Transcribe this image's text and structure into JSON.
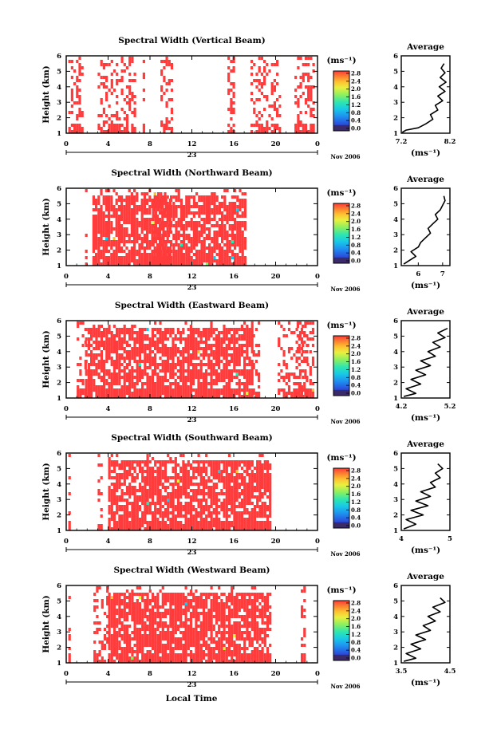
{
  "figure": {
    "xlabel": "Local Time",
    "date_label": "Nov 2006",
    "day_label": "23",
    "colorbar_unit": "(ms⁻¹)",
    "average_title": "Average",
    "average_xlabel": "(ms⁻¹)",
    "colors": {
      "dominant": "#ff3b3b",
      "colormap": [
        "#3a2a6a",
        "#2b48d8",
        "#1f8bf0",
        "#18c8e8",
        "#2ee6b0",
        "#8cf060",
        "#e8f040",
        "#ffc030",
        "#ff8030",
        "#ff3b3b"
      ]
    }
  },
  "chart_data": [
    {
      "type": "heatmap",
      "title": "Spectral Width (Vertical Beam)",
      "ylabel": "Height (km)",
      "x": {
        "range": [
          0,
          24
        ],
        "ticks": [
          "0",
          "4",
          "8",
          "12",
          "16",
          "20",
          "0"
        ]
      },
      "ylim": [
        1,
        6
      ],
      "yticks": [
        "1",
        "2",
        "3",
        "4",
        "5",
        "6"
      ],
      "colorbar": {
        "range": [
          0.0,
          2.8
        ],
        "ticks": [
          "0.0",
          "0.4",
          "0.8",
          "1.2",
          "1.6",
          "2.0",
          "2.4",
          "2.8"
        ]
      },
      "dominant_value": ">= 2.8 (saturated)",
      "echo_segments_hours": [
        [
          0.2,
          1.6
        ],
        [
          3.0,
          3.8
        ],
        [
          4.0,
          6.6
        ],
        [
          7.3,
          7.5
        ],
        [
          9.0,
          10.2
        ],
        [
          15.4,
          16.0
        ],
        [
          17.6,
          20.4
        ],
        [
          21.8,
          23.6
        ]
      ],
      "average": {
        "xlim": [
          7.2,
          8.2
        ],
        "xticks": [
          "7.2",
          "8.2"
        ],
        "ylim": [
          1,
          6
        ],
        "values": [
          [
            7.22,
            1.05
          ],
          [
            7.3,
            1.2
          ],
          [
            7.55,
            1.35
          ],
          [
            7.7,
            1.6
          ],
          [
            7.85,
            1.9
          ],
          [
            7.8,
            2.2
          ],
          [
            7.95,
            2.5
          ],
          [
            7.9,
            2.8
          ],
          [
            8.05,
            3.1
          ],
          [
            7.95,
            3.4
          ],
          [
            8.1,
            3.7
          ],
          [
            7.98,
            4.0
          ],
          [
            8.12,
            4.3
          ],
          [
            8.0,
            4.6
          ],
          [
            8.1,
            4.9
          ],
          [
            8.02,
            5.2
          ],
          [
            8.08,
            5.5
          ]
        ]
      }
    },
    {
      "type": "heatmap",
      "title": "Spectral Width (Northward Beam)",
      "ylabel": "Height (km)",
      "x": {
        "range": [
          0,
          24
        ],
        "ticks": [
          "0",
          "4",
          "8",
          "12",
          "16",
          "20",
          "0"
        ]
      },
      "ylim": [
        1,
        6
      ],
      "yticks": [
        "1",
        "2",
        "3",
        "4",
        "5",
        "6"
      ],
      "colorbar": {
        "range": [
          0.0,
          2.8
        ],
        "ticks": [
          "0.0",
          "0.4",
          "0.8",
          "1.2",
          "1.6",
          "2.0",
          "2.4",
          "2.8"
        ]
      },
      "dominant_value": ">= 2.8 (saturated)",
      "echo_segments_hours": [
        [
          1.8,
          2.0
        ],
        [
          2.5,
          10.0
        ],
        [
          8.2,
          17.0
        ]
      ],
      "average": {
        "xlim": [
          5.3,
          7.3
        ],
        "xticks": [
          "6",
          "7"
        ],
        "ylim": [
          1,
          6
        ],
        "values": [
          [
            5.4,
            1.1
          ],
          [
            5.6,
            1.3
          ],
          [
            5.9,
            1.6
          ],
          [
            5.7,
            1.9
          ],
          [
            6.0,
            2.2
          ],
          [
            6.1,
            2.5
          ],
          [
            6.3,
            2.8
          ],
          [
            6.5,
            3.1
          ],
          [
            6.4,
            3.4
          ],
          [
            6.6,
            3.7
          ],
          [
            6.8,
            4.0
          ],
          [
            6.7,
            4.3
          ],
          [
            6.9,
            4.6
          ],
          [
            7.0,
            4.9
          ],
          [
            7.1,
            5.2
          ],
          [
            7.05,
            5.5
          ]
        ]
      }
    },
    {
      "type": "heatmap",
      "title": "Spectral Width (Eastward Beam)",
      "ylabel": "Height (km)",
      "x": {
        "range": [
          0,
          24
        ],
        "ticks": [
          "0",
          "4",
          "8",
          "12",
          "16",
          "20",
          "0"
        ]
      },
      "ylim": [
        1,
        6
      ],
      "yticks": [
        "1",
        "2",
        "3",
        "4",
        "5",
        "6"
      ],
      "colorbar": {
        "range": [
          0.0,
          2.8
        ],
        "ticks": [
          "0.0",
          "0.4",
          "0.8",
          "1.2",
          "1.6",
          "2.0",
          "2.4",
          "2.8"
        ]
      },
      "dominant_value": ">= 2.8 (saturated)",
      "echo_segments_hours": [
        [
          1.0,
          1.8
        ],
        [
          1.8,
          17.8
        ],
        [
          17.8,
          18.4
        ],
        [
          20.2,
          23.0
        ],
        [
          22.0,
          23.6
        ]
      ],
      "average": {
        "xlim": [
          4.2,
          5.2
        ],
        "xticks": [
          "4.2",
          "5.2"
        ],
        "ylim": [
          1,
          6
        ],
        "values": [
          [
            4.25,
            1.1
          ],
          [
            4.5,
            1.3
          ],
          [
            4.3,
            1.6
          ],
          [
            4.6,
            1.9
          ],
          [
            4.4,
            2.2
          ],
          [
            4.7,
            2.5
          ],
          [
            4.5,
            2.8
          ],
          [
            4.8,
            3.1
          ],
          [
            4.6,
            3.4
          ],
          [
            4.9,
            3.7
          ],
          [
            4.75,
            4.0
          ],
          [
            5.0,
            4.3
          ],
          [
            4.85,
            4.6
          ],
          [
            5.1,
            4.9
          ],
          [
            4.95,
            5.2
          ],
          [
            5.15,
            5.5
          ]
        ]
      }
    },
    {
      "type": "heatmap",
      "title": "Spectral Width (Southward Beam)",
      "ylabel": "Height (km)",
      "x": {
        "range": [
          0,
          24
        ],
        "ticks": [
          "0",
          "4",
          "8",
          "12",
          "16",
          "20",
          "0"
        ]
      },
      "ylim": [
        1,
        6
      ],
      "yticks": [
        "1",
        "2",
        "3",
        "4",
        "5",
        "6"
      ],
      "colorbar": {
        "range": [
          0.0,
          2.8
        ],
        "ticks": [
          "0.0",
          "0.4",
          "0.8",
          "1.2",
          "1.6",
          "2.0",
          "2.4",
          "2.8"
        ]
      },
      "dominant_value": ">= 2.8 (saturated)",
      "echo_segments_hours": [
        [
          0.2,
          0.4
        ],
        [
          3.0,
          3.4
        ],
        [
          4.0,
          19.6
        ]
      ],
      "average": {
        "xlim": [
          4.0,
          5.0
        ],
        "xticks": [
          "4",
          "5"
        ],
        "ylim": [
          1,
          6
        ],
        "values": [
          [
            4.05,
            1.1
          ],
          [
            4.3,
            1.4
          ],
          [
            4.1,
            1.7
          ],
          [
            4.45,
            2.0
          ],
          [
            4.2,
            2.3
          ],
          [
            4.55,
            2.6
          ],
          [
            4.3,
            2.9
          ],
          [
            4.6,
            3.2
          ],
          [
            4.4,
            3.5
          ],
          [
            4.7,
            3.8
          ],
          [
            4.6,
            4.1
          ],
          [
            4.8,
            4.4
          ],
          [
            4.7,
            4.7
          ],
          [
            4.85,
            5.0
          ],
          [
            4.75,
            5.3
          ]
        ]
      }
    },
    {
      "type": "heatmap",
      "title": "Spectral Width (Westward Beam)",
      "ylabel": "Height (km)",
      "x": {
        "range": [
          0,
          24
        ],
        "ticks": [
          "0",
          "4",
          "8",
          "12",
          "16",
          "20",
          "0"
        ]
      },
      "ylim": [
        1,
        6
      ],
      "yticks": [
        "1",
        "2",
        "3",
        "4",
        "5",
        "6"
      ],
      "colorbar": {
        "range": [
          0.0,
          2.8
        ],
        "ticks": [
          "0.0",
          "0.4",
          "0.8",
          "1.2",
          "1.6",
          "2.0",
          "2.4",
          "2.8"
        ]
      },
      "dominant_value": ">= 2.8 (saturated)",
      "echo_segments_hours": [
        [
          0.2,
          0.4
        ],
        [
          2.6,
          4.0
        ],
        [
          4.0,
          19.6
        ],
        [
          22.4,
          22.8
        ]
      ],
      "average": {
        "xlim": [
          3.5,
          4.5
        ],
        "xticks": [
          "3.5",
          "4.5"
        ],
        "ylim": [
          1,
          6
        ],
        "values": [
          [
            3.55,
            1.1
          ],
          [
            3.8,
            1.3
          ],
          [
            3.6,
            1.6
          ],
          [
            3.9,
            1.9
          ],
          [
            3.7,
            2.2
          ],
          [
            4.0,
            2.5
          ],
          [
            3.8,
            2.8
          ],
          [
            4.1,
            3.1
          ],
          [
            3.95,
            3.4
          ],
          [
            4.2,
            3.7
          ],
          [
            4.05,
            4.0
          ],
          [
            4.3,
            4.3
          ],
          [
            4.15,
            4.6
          ],
          [
            4.4,
            4.9
          ],
          [
            4.3,
            5.2
          ]
        ]
      }
    }
  ]
}
